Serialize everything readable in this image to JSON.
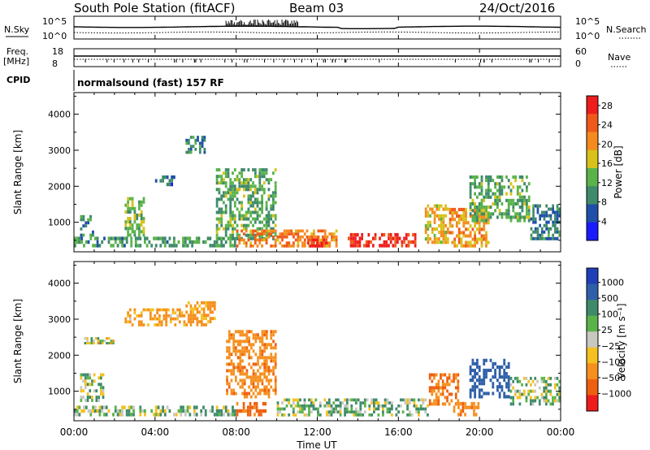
{
  "header": {
    "station": "South Pole Station (fitACF)",
    "beam": "Beam 03",
    "date": "24/Oct/2016"
  },
  "panels": {
    "nsky_label": "N.Sky",
    "nsearch_label": "N.Search",
    "freq_label_1": "Freq.",
    "freq_label_2": "[MHz]",
    "nave_label": "Nave",
    "cpid_label": "CPID",
    "cpid_text": "normalsound (fast) 157 RF",
    "noise_left_ticks": [
      "10^5",
      "10^0"
    ],
    "noise_right_ticks": [
      "10^5",
      "10^0"
    ],
    "freq_left_ticks": [
      "18",
      "8"
    ],
    "freq_right_ticks": [
      "60",
      "0"
    ]
  },
  "colors": {
    "power_scale": [
      "#1a1aff",
      "#1f4fa8",
      "#3f8a6a",
      "#5ab34a",
      "#d8c21a",
      "#f58a1e",
      "#ef5a1a",
      "#ee1c1c"
    ],
    "velocity_scale": [
      "#1f3fb8",
      "#2f5fa8",
      "#3f8a6a",
      "#5ab34a",
      "#c8c8c0",
      "#f5c020",
      "#f5901e",
      "#ee6010",
      "#ee1c1c"
    ]
  },
  "chart_data": [
    {
      "type": "heatmap",
      "name_key": "power",
      "ylabel": "Slant Range [km]",
      "xlabel": "",
      "xlim": [
        "00:00",
        "24:00"
      ],
      "ylim": [
        180,
        4600
      ],
      "yticks": [
        "1000",
        "2000",
        "3000",
        "4000"
      ],
      "colorbar": {
        "label": "Power [dB]",
        "ticks": [
          "4",
          "8",
          "12",
          "16",
          "20",
          "24",
          "28"
        ],
        "range": [
          0,
          30
        ]
      },
      "regions": [
        {
          "t0": 0.0,
          "t1": 8.0,
          "r0": 300,
          "r1": 600,
          "value": 10
        },
        {
          "t0": 0.3,
          "t1": 1.0,
          "r0": 600,
          "r1": 1200,
          "value": 10
        },
        {
          "t0": 2.5,
          "t1": 3.5,
          "r0": 600,
          "r1": 1700,
          "value": 14
        },
        {
          "t0": 4.0,
          "t1": 5.0,
          "r0": 2000,
          "r1": 2300,
          "value": 6
        },
        {
          "t0": 5.5,
          "t1": 6.5,
          "r0": 2900,
          "r1": 3400,
          "value": 8
        },
        {
          "t0": 7.0,
          "t1": 10.0,
          "r0": 500,
          "r1": 2500,
          "value": 12
        },
        {
          "t0": 8.0,
          "t1": 13.0,
          "r0": 300,
          "r1": 800,
          "value": 22
        },
        {
          "t0": 11.5,
          "t1": 12.5,
          "r0": 300,
          "r1": 550,
          "value": 29
        },
        {
          "t0": 13.5,
          "t1": 17.0,
          "r0": 300,
          "r1": 700,
          "value": 28
        },
        {
          "t0": 17.3,
          "t1": 18.5,
          "r0": 400,
          "r1": 1500,
          "value": 18
        },
        {
          "t0": 18.5,
          "t1": 20.5,
          "r0": 300,
          "r1": 1400,
          "value": 20
        },
        {
          "t0": 19.5,
          "t1": 22.5,
          "r0": 1000,
          "r1": 2300,
          "value": 12
        },
        {
          "t0": 22.5,
          "t1": 24.0,
          "r0": 500,
          "r1": 1500,
          "value": 8
        }
      ]
    },
    {
      "type": "heatmap",
      "name_key": "velocity",
      "ylabel": "Slant Range [km]",
      "xlabel": "Time UT",
      "xlim": [
        "00:00",
        "24:00"
      ],
      "ylim": [
        180,
        4600
      ],
      "yticks": [
        "1000",
        "2000",
        "3000",
        "4000"
      ],
      "xticks": [
        "00:00",
        "04:00",
        "08:00",
        "12:00",
        "16:00",
        "20:00",
        "00:00"
      ],
      "colorbar": {
        "label": "Velocity [m s⁻¹]",
        "ticks": [
          "1000",
          "500",
          "100",
          "25",
          "−25",
          "−100",
          "−500",
          "−1000"
        ],
        "range": [
          -1000,
          1000
        ]
      },
      "regions": [
        {
          "t0": 0.0,
          "t1": 8.0,
          "r0": 300,
          "r1": 600,
          "value": 80
        },
        {
          "t0": 0.3,
          "t1": 1.5,
          "r0": 700,
          "r1": 1500,
          "value": 60
        },
        {
          "t0": 0.5,
          "t1": 2.0,
          "r0": 2300,
          "r1": 2500,
          "value": 10
        },
        {
          "t0": 2.5,
          "t1": 5.5,
          "r0": 2800,
          "r1": 3300,
          "value": -150
        },
        {
          "t0": 5.5,
          "t1": 7.0,
          "r0": 2800,
          "r1": 3500,
          "value": -200
        },
        {
          "t0": 7.5,
          "t1": 10.0,
          "r0": 800,
          "r1": 2700,
          "value": -400
        },
        {
          "t0": 8.0,
          "t1": 9.5,
          "r0": 300,
          "r1": 700,
          "value": -600
        },
        {
          "t0": 10.0,
          "t1": 17.5,
          "r0": 300,
          "r1": 800,
          "value": 80
        },
        {
          "t0": 17.5,
          "t1": 19.0,
          "r0": 600,
          "r1": 1500,
          "value": -500
        },
        {
          "t0": 18.7,
          "t1": 20.0,
          "r0": 300,
          "r1": 700,
          "value": -400
        },
        {
          "t0": 19.5,
          "t1": 21.5,
          "r0": 800,
          "r1": 1900,
          "value": 700
        },
        {
          "t0": 21.5,
          "t1": 24.0,
          "r0": 600,
          "r1": 1400,
          "value": 60
        }
      ]
    }
  ]
}
